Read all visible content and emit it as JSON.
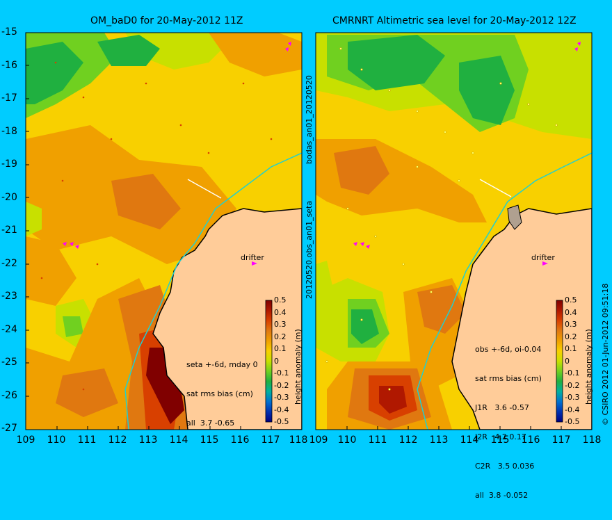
{
  "panels": [
    {
      "title": "OM_baD0 for 20-May-2012 11Z",
      "drifter_label": "drifter",
      "stats": [
        "seta +-6d, mday 0",
        "sat rms bias (cm)",
        "all  3.7 -0.65"
      ]
    },
    {
      "title": "CMRNRT Altimetric sea level  for 20-May-2012 12Z",
      "drifter_label": "drifter",
      "stats": [
        "obs +-6d, oi-0.04",
        "sat rms bias (cm)",
        "J1R   3.6 -0.57",
        "J2R   4.2 0.17",
        "C2R   3.5 0.036",
        "all  3.8 -0.052"
      ]
    }
  ],
  "y_ticks": [
    "-15",
    "-16",
    "-17",
    "-18",
    "-19",
    "-20",
    "-21",
    "-22",
    "-23",
    "-24",
    "-25",
    "-26",
    "-27"
  ],
  "x_ticks": [
    "109",
    "110",
    "111",
    "112",
    "113",
    "114",
    "115",
    "116",
    "117",
    "118"
  ],
  "side_labels": {
    "top": "bodas_an01_20120520",
    "bottom": "20120520.obs_an01_seta",
    "credit": "© CSIRO 2012   01-Jun-2012 09:51:18"
  },
  "colorbar": {
    "ticks": [
      "0.5",
      "0.4",
      "0.3",
      "0.2",
      "0.1",
      "0",
      "-0.1",
      "-0.2",
      "-0.3",
      "-0.4",
      "-0.5"
    ],
    "label": "height anomaly (m)",
    "colors": [
      "#800000",
      "#b01800",
      "#d84000",
      "#e07810",
      "#f0a000",
      "#f8d000",
      "#c8e000",
      "#70d020",
      "#20b040",
      "#00b0a0",
      "#0070d0",
      "#0030b0",
      "#000080"
    ]
  },
  "map": {
    "lon_range": [
      109,
      118
    ],
    "lat_range": [
      -27,
      -15
    ],
    "land_color": "#ffcc99",
    "coast_color": "#000000",
    "isobath_color": "#20d0d0"
  }
}
